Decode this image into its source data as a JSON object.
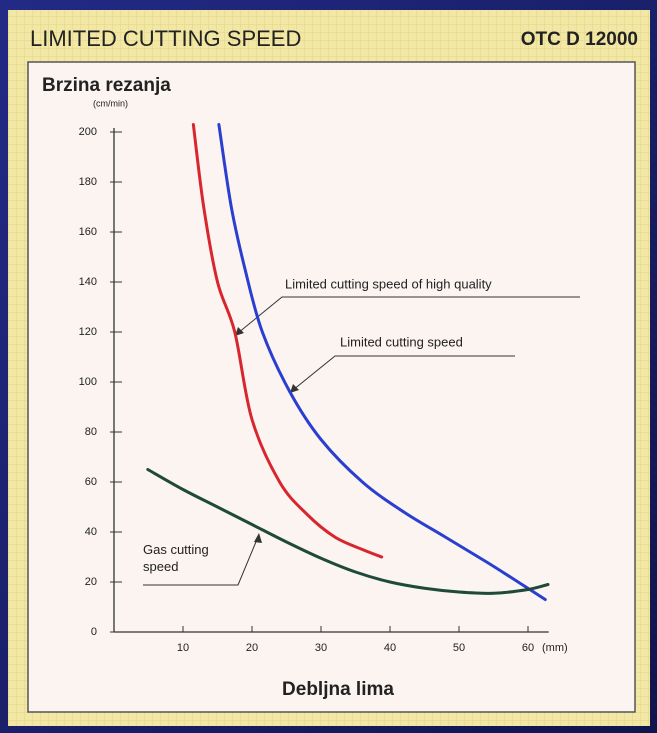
{
  "chart_data": {
    "type": "line",
    "title": "LIMITED CUTTING SPEED",
    "subtitle": "OTC D 12000",
    "y_label": "Brzina rezanja",
    "y_unit": "(cm/min)",
    "x_label": "Debljna lima",
    "x_unit": "(mm)",
    "xlim": [
      0,
      63
    ],
    "ylim": [
      0,
      200
    ],
    "xticks": [
      10,
      20,
      30,
      40,
      50,
      60
    ],
    "yticks": [
      0,
      20,
      40,
      60,
      80,
      100,
      120,
      140,
      160,
      180,
      200
    ],
    "series": [
      {
        "name": "Limited cutting speed of high quality",
        "color": "#d8262e",
        "x": [
          11.5,
          13,
          15,
          17.5,
          20,
          24,
          28,
          32,
          36,
          38.8
        ],
        "values": [
          203,
          170,
          140,
          120,
          85,
          60,
          47,
          38,
          33,
          30
        ]
      },
      {
        "name": "Limited cutting speed",
        "color": "#2a3fd0",
        "x": [
          15.2,
          17,
          19,
          21.5,
          25.5,
          30,
          36,
          42,
          48,
          54,
          58,
          62.5
        ],
        "values": [
          203,
          170,
          145,
          120,
          96,
          77,
          60,
          48,
          38,
          28,
          21,
          13
        ]
      },
      {
        "name": "Gas cutting speed",
        "color": "#1f4a3a",
        "x": [
          4.9,
          10,
          15,
          20,
          25,
          30,
          35,
          40,
          45,
          50,
          55,
          60,
          62.9
        ],
        "values": [
          65,
          57,
          50,
          43,
          36,
          29.5,
          24,
          20,
          17.5,
          16,
          15.5,
          17,
          19
        ]
      }
    ]
  }
}
